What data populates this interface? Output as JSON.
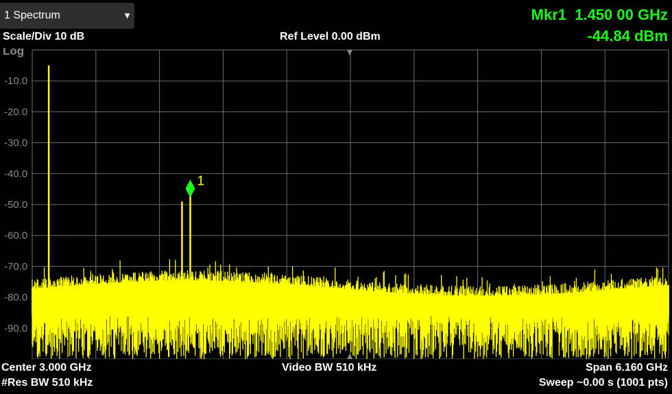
{
  "window": {
    "selector_label": "1 Spectrum",
    "selector_icon": "chevron-down-icon"
  },
  "marker": {
    "title": "Mkr1  1.450 00 GHz",
    "level": "-44.84 dBm",
    "number_label": "1",
    "color": "#1aff1a"
  },
  "header": {
    "scale": "Scale/Div 10 dB",
    "ref_level": "Ref Level 0.00 dBm",
    "scale_type": "Log"
  },
  "footer": {
    "center": "Center 3.000 GHz",
    "video_bw": "Video BW 510 kHz",
    "span": "Span 6.160 GHz",
    "res_bw": "#Res BW 510 kHz",
    "sweep": "Sweep ~0.00 s",
    "points": "(1001 pts)"
  },
  "colors": {
    "trace": "#ffff00",
    "grid": "#6e6e6e",
    "background": "#000000",
    "marker": "#1aff1a"
  },
  "chart_data": {
    "type": "line",
    "y_tick_labels": [
      "-10.0",
      "-20.0",
      "-30.0",
      "-40.0",
      "-50.0",
      "-60.0",
      "-70.0",
      "-80.0",
      "-90.0"
    ],
    "ylim": [
      -100,
      0
    ],
    "xlim_ghz": [
      -0.08,
      6.08
    ],
    "noise_floor_dbm": -76,
    "spurs": [
      {
        "x_ghz": 0.08,
        "y_dbm": -5
      },
      {
        "x_ghz": 1.37,
        "y_dbm": -49
      },
      {
        "x_ghz": 1.45,
        "y_dbm": -44.84
      }
    ],
    "marker": {
      "x_ghz": 1.45,
      "y_dbm": -44.84
    }
  }
}
